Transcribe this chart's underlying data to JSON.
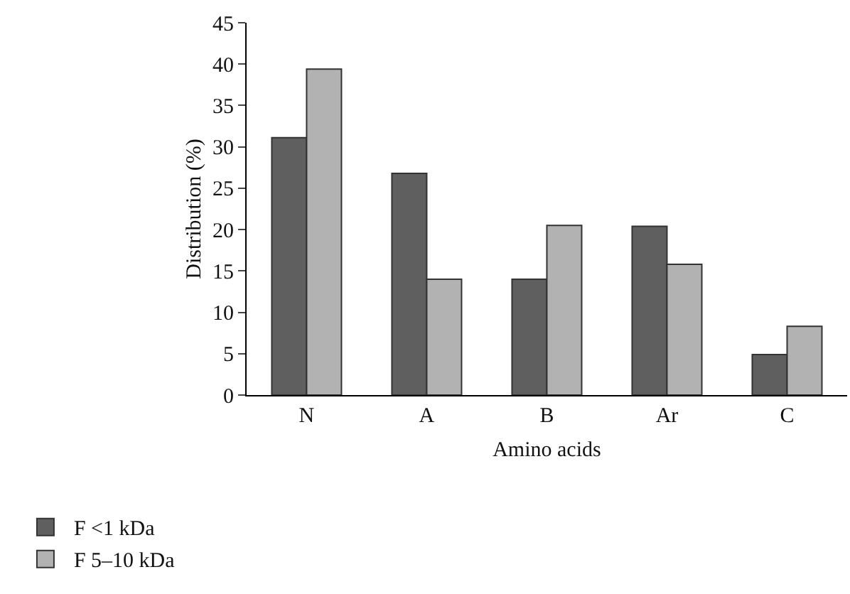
{
  "chart_data": {
    "type": "bar",
    "xlabel": "Amino acids",
    "ylabel": "Distribution (%)",
    "categories": [
      "N",
      "A",
      "B",
      "Ar",
      "C"
    ],
    "series": [
      {
        "name": "F <1 kDa",
        "color": "#5f5f5f",
        "values": [
          31.1,
          26.8,
          14.0,
          20.4,
          4.9
        ]
      },
      {
        "name": "F 5–10 kDa",
        "color": "#b2b2b2",
        "values": [
          39.4,
          14.0,
          20.5,
          15.8,
          8.3
        ]
      }
    ],
    "ylim": [
      0,
      45
    ],
    "yticks": [
      0,
      5,
      10,
      15,
      20,
      25,
      30,
      35,
      40,
      45
    ],
    "grid": false,
    "legend": "bottom left"
  }
}
